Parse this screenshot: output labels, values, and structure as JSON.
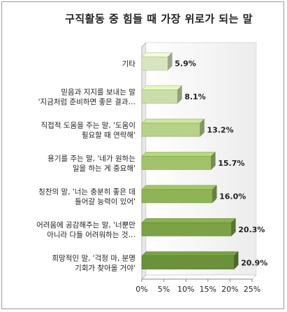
{
  "chart_data": {
    "type": "bar",
    "orientation": "horizontal",
    "title": "구직활동 중 힘들 때 가장 위로가 되는 말",
    "categories": [
      [
        "기타"
      ],
      [
        "믿음과 지지를 보내는 말",
        "'지금처럼 준비하면 좋은 결과…"
      ],
      [
        "직접적 도움을 주는 말, '도움이",
        "필요할 때 연락해'"
      ],
      [
        "용기를 주는 말, '네가 원하는",
        "일을 하는 게 중요해'"
      ],
      [
        "칭찬의 말, '너는 충분히 좋은 데",
        "들어갈 능력이 있어'"
      ],
      [
        "어려움에 공감해주는 말, '너뿐만",
        "아니라 다들 어려워하는 것…"
      ],
      [
        "희망적인 말, '걱정 마, 분명",
        "기회가 찾아올 거야'"
      ]
    ],
    "values": [
      5.9,
      8.1,
      13.2,
      15.7,
      16.0,
      20.3,
      20.9
    ],
    "value_labels": [
      "5.9%",
      "8.1%",
      "13.2%",
      "15.7%",
      "16.0%",
      "20.3%",
      "20.9%"
    ],
    "xlim": [
      0,
      25
    ],
    "x_ticks": [
      "0%",
      "5%",
      "10%",
      "15%",
      "20%",
      "25%"
    ],
    "bar_colors": [
      "#d8e6bf",
      "#cbdeaa",
      "#b5d288",
      "#a1c46a",
      "#8fb456",
      "#7ba244",
      "#6b923a"
    ],
    "grid": false,
    "legend": "none"
  }
}
